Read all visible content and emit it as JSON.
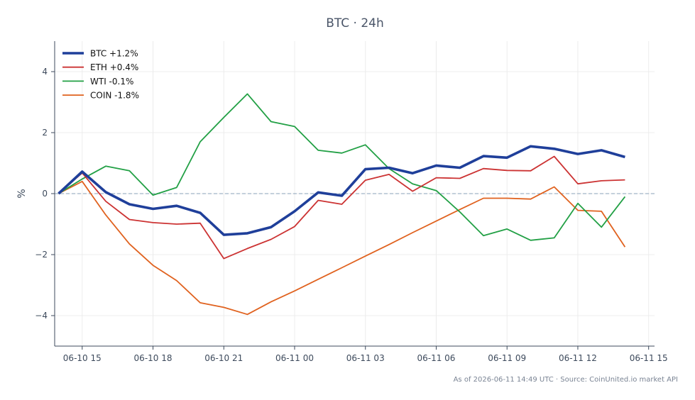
{
  "chart_data": {
    "type": "line",
    "title": "BTC · 24h",
    "xlabel": "",
    "ylabel": "%",
    "footer": "As of 2026-06-11 14:49 UTC · Source: CoinUnited.io market API",
    "ylim": [
      -5,
      5
    ],
    "yticks": [
      -4,
      -2,
      0,
      2,
      4
    ],
    "ytick_labels": [
      "−4",
      "−2",
      "0",
      "2",
      "4"
    ],
    "xlim": [
      "2026-06-10 13:50",
      "2026-06-11 15:15"
    ],
    "xticks": [
      "2026-06-10 15:00",
      "2026-06-10 18:00",
      "2026-06-10 21:00",
      "2026-06-11 00:00",
      "2026-06-11 03:00",
      "2026-06-11 06:00",
      "2026-06-11 09:00",
      "2026-06-11 12:00",
      "2026-06-11 15:00"
    ],
    "xtick_labels": [
      "06-10 15",
      "06-10 18",
      "06-10 21",
      "06-11 00",
      "06-11 03",
      "06-11 06",
      "06-11 09",
      "06-11 12",
      "06-11 15"
    ],
    "grid": true,
    "zero_line": true,
    "legend_position": "top-left",
    "x": [
      "2026-06-10 14:00",
      "2026-06-10 15:00",
      "2026-06-10 16:00",
      "2026-06-10 17:00",
      "2026-06-10 18:00",
      "2026-06-10 19:00",
      "2026-06-10 20:00",
      "2026-06-10 21:00",
      "2026-06-10 22:00",
      "2026-06-10 23:00",
      "2026-06-11 00:00",
      "2026-06-11 01:00",
      "2026-06-11 02:00",
      "2026-06-11 03:00",
      "2026-06-11 04:00",
      "2026-06-11 05:00",
      "2026-06-11 06:00",
      "2026-06-11 07:00",
      "2026-06-11 08:00",
      "2026-06-11 09:00",
      "2026-06-11 10:00",
      "2026-06-11 11:00",
      "2026-06-11 12:00",
      "2026-06-11 13:00",
      "2026-06-11 14:00"
    ],
    "series": [
      {
        "name": "BTC +1.2%",
        "color": "#1f3f9a",
        "values": [
          0,
          0.72,
          0.05,
          -0.35,
          -0.5,
          -0.4,
          -0.63,
          -1.35,
          -1.3,
          -1.1,
          -0.58,
          0.04,
          -0.07,
          0.8,
          0.85,
          0.67,
          0.92,
          0.85,
          1.23,
          1.18,
          1.55,
          1.47,
          1.3,
          1.42,
          1.2
        ]
      },
      {
        "name": "ETH +0.4%",
        "color": "#cc3333",
        "values": [
          0,
          0.68,
          -0.25,
          -0.85,
          -0.95,
          -1.0,
          -0.97,
          -2.13,
          -1.8,
          -1.5,
          -1.08,
          -0.22,
          -0.35,
          0.44,
          0.63,
          0.08,
          0.52,
          0.5,
          0.82,
          0.76,
          0.75,
          1.22,
          0.32,
          0.42,
          0.45
        ]
      },
      {
        "name": "WTI -0.1%",
        "color": "#22a045",
        "values": [
          0,
          0.48,
          0.9,
          0.75,
          -0.05,
          0.2,
          1.7,
          2.5,
          3.27,
          2.36,
          2.2,
          1.42,
          1.33,
          1.6,
          0.82,
          0.32,
          0.1,
          -0.6,
          -1.38,
          -1.16,
          -1.53,
          -1.45,
          -0.32,
          -1.1,
          -0.1
        ]
      },
      {
        "name": "COIN -1.8%",
        "color": "#e0621f",
        "values": [
          0,
          0.4,
          -0.7,
          -1.65,
          -2.35,
          -2.85,
          -3.58,
          -3.73,
          -3.96,
          -3.55,
          -3.19,
          -2.81,
          -2.43,
          -2.05,
          -1.67,
          -1.28,
          -0.9,
          -0.52,
          -0.15,
          -0.15,
          -0.18,
          0.22,
          -0.55,
          -0.58,
          -1.75
        ]
      }
    ]
  }
}
